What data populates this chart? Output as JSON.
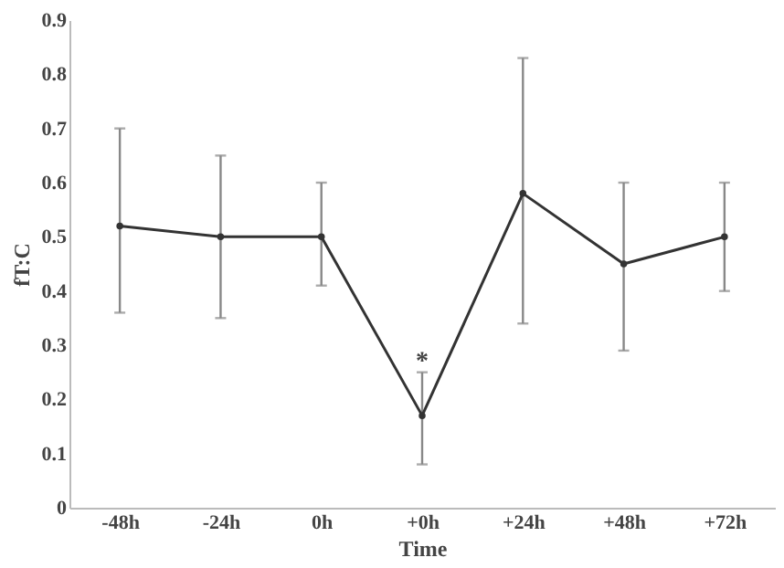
{
  "chart_data": {
    "type": "line",
    "xlabel": "Time",
    "ylabel": "fT:C",
    "categories": [
      "-48h",
      "-24h",
      "0h",
      "+0h",
      "+24h",
      "+48h",
      "+72h"
    ],
    "series": [
      {
        "color": "#333333",
        "values": [
          0.52,
          0.5,
          0.5,
          0.17,
          0.58,
          0.45,
          0.5
        ],
        "errors": [
          [
            0.36,
            0.7
          ],
          [
            0.35,
            0.65
          ],
          [
            0.41,
            0.6
          ],
          [
            0.08,
            0.25
          ],
          [
            0.34,
            0.83
          ],
          [
            0.29,
            0.6
          ],
          [
            0.4,
            0.6
          ]
        ]
      }
    ],
    "ylim": [
      0,
      0.9
    ],
    "yticks": [
      0,
      0.1,
      0.2,
      0.3,
      0.4,
      0.5,
      0.6,
      0.7,
      0.8,
      0.9
    ],
    "annotations": [
      {
        "text": "*",
        "x": "+0h",
        "y": 0.27
      }
    ],
    "grid": false,
    "marker": "circle"
  }
}
